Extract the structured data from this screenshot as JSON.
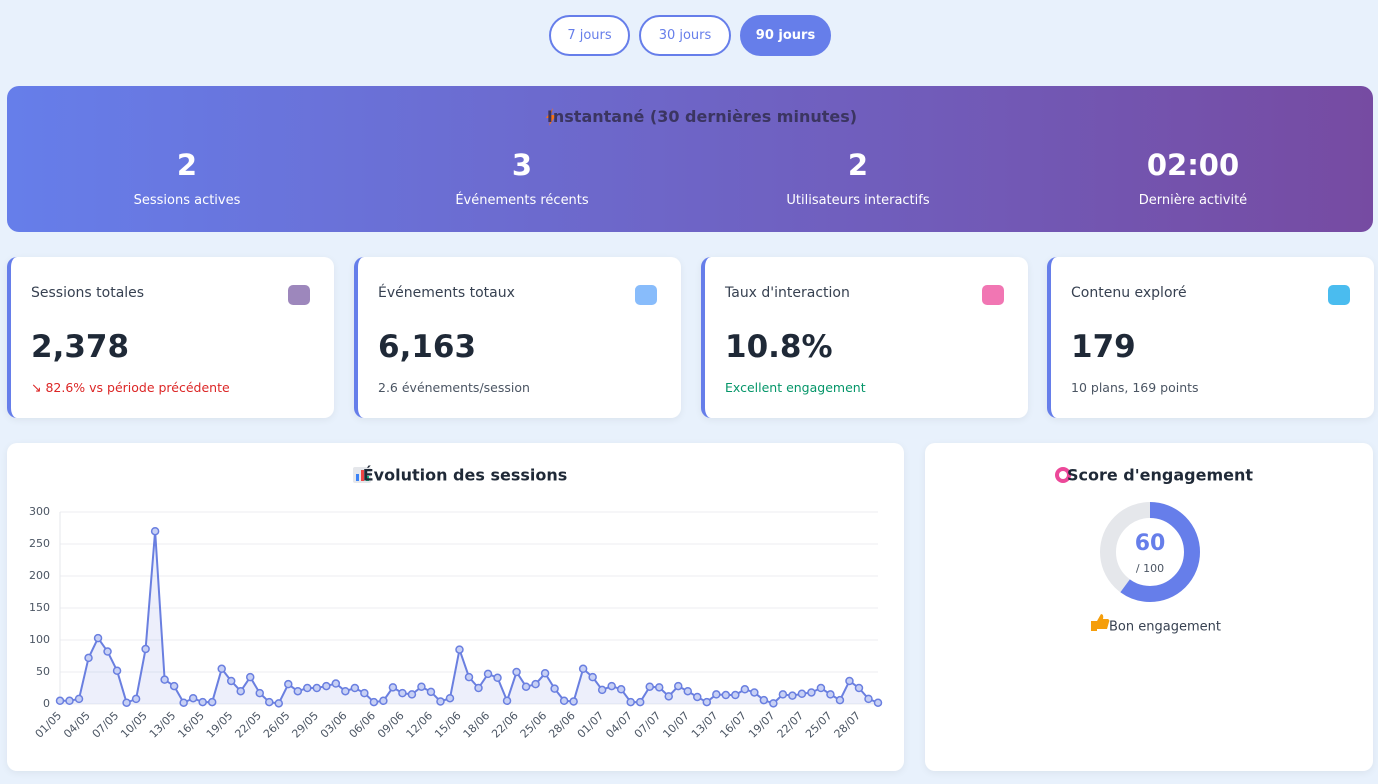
{
  "filters": [
    "7 jours",
    "30 jours",
    "90 jours"
  ],
  "active_filter": 2,
  "realtime": {
    "title": "Instantané (30 dernières minutes)",
    "stats": [
      {
        "value": "2",
        "label": "Sessions actives"
      },
      {
        "value": "3",
        "label": "Événements récents"
      },
      {
        "value": "2",
        "label": "Utilisateurs interactifs"
      },
      {
        "value": "02:00",
        "label": "Dernière activité"
      }
    ]
  },
  "cards": [
    {
      "label": "Sessions totales",
      "value": "2,378",
      "sub": "↘ 82.6% vs période précédente",
      "sub_color": "#dc2626"
    },
    {
      "label": "Événements totaux",
      "value": "6,163",
      "sub": "2.6 événements/session",
      "sub_color": "#4b5563"
    },
    {
      "label": "Taux d'interaction",
      "value": "10.8%",
      "sub": "Excellent engagement",
      "sub_color": "#059669"
    },
    {
      "label": "Contenu exploré",
      "value": "179",
      "sub": "10 plans, 169 points",
      "sub_color": "#4b5563"
    }
  ],
  "chart_data": {
    "type": "line",
    "title": "Évolution des sessions",
    "color": "#6a7fe0",
    "grid": true,
    "categories": [
      "01/05",
      null,
      null,
      "04/05",
      null,
      null,
      "07/05",
      null,
      null,
      "10/05",
      null,
      null,
      "13/05",
      null,
      null,
      "16/05",
      null,
      null,
      "19/05",
      null,
      null,
      "22/05",
      null,
      null,
      "26/05",
      null,
      null,
      "29/05",
      null,
      null,
      "03/06",
      null,
      null,
      "06/06",
      null,
      null,
      "09/06",
      null,
      null,
      "12/06",
      null,
      null,
      "15/06",
      null,
      null,
      "18/06",
      null,
      null,
      "22/06",
      null,
      null,
      "25/06",
      null,
      null,
      "28/06",
      null,
      null,
      "01/07",
      null,
      null,
      "04/07",
      null,
      null,
      "07/07",
      null,
      null,
      "10/07",
      null,
      null,
      "13/07",
      null,
      null,
      "16/07",
      null,
      null,
      "19/07",
      null,
      null,
      "22/07",
      null,
      null,
      "25/07",
      null,
      null,
      "28/07",
      null,
      null
    ],
    "values": [
      5,
      5,
      8,
      72,
      103,
      82,
      52,
      2,
      8,
      86,
      270,
      38,
      28,
      2,
      9,
      3,
      3,
      55,
      36,
      20,
      42,
      17,
      3,
      1,
      31,
      20,
      25,
      25,
      28,
      32,
      20,
      25,
      17,
      3,
      5,
      26,
      17,
      15,
      27,
      19,
      4,
      9,
      85,
      42,
      25,
      47,
      41,
      5,
      50,
      27,
      31,
      48,
      24,
      5,
      4,
      55,
      42,
      22,
      28,
      23,
      3,
      3,
      27,
      26,
      12,
      28,
      20,
      11,
      3,
      15,
      14,
      14,
      23,
      18,
      6,
      1,
      15,
      13,
      16,
      18,
      25,
      15,
      6,
      36,
      25,
      8,
      2
    ],
    "ylim": [
      0,
      300
    ],
    "yticks": [
      0,
      50,
      100,
      150,
      200,
      250,
      300
    ]
  },
  "engagement": {
    "title": "Score d'engagement",
    "score": 60,
    "score_label": "60",
    "score_max": 100,
    "score_max_label": "/ 100",
    "status": "Bon engagement"
  }
}
